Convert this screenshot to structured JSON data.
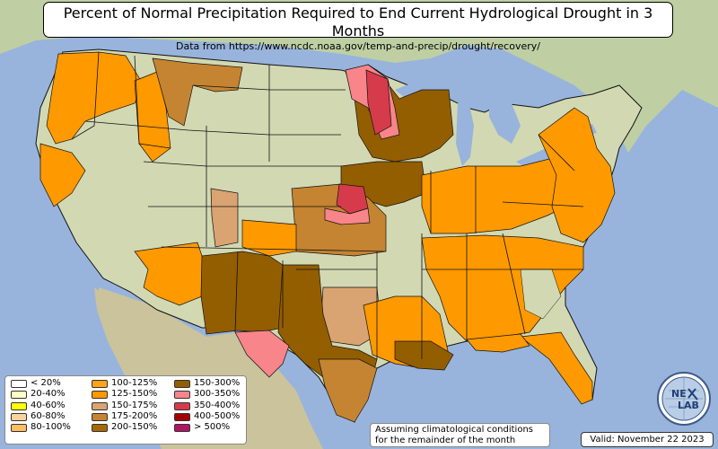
{
  "title": "Percent of Normal Precipitation Required to End Current Hydrological Drought in 3 Months",
  "subtitle": "Data from https://www.ncdc.noaa.gov/temp-and-precip/drought/recovery/",
  "legend": {
    "items": [
      {
        "label": "< 20%",
        "color": "#ffffff"
      },
      {
        "label": "20-40%",
        "color": "#ffffc4"
      },
      {
        "label": "40-60%",
        "color": "#ffff00"
      },
      {
        "label": "60-80%",
        "color": "#fcd39b"
      },
      {
        "label": "80-100%",
        "color": "#fdbe62"
      },
      {
        "label": "100-125%",
        "color": "#ffa31a"
      },
      {
        "label": "125-150%",
        "color": "#ff9900"
      },
      {
        "label": "150-175%",
        "color": "#d9a472"
      },
      {
        "label": "175-200%",
        "color": "#c58431"
      },
      {
        "label": "200-150%",
        "color": "#a86808"
      },
      {
        "label": "150-300%",
        "color": "#935e00"
      },
      {
        "label": "300-350%",
        "color": "#f7858a"
      },
      {
        "label": "350-400%",
        "color": "#d63b4b"
      },
      {
        "label": "400-500%",
        "color": "#a50000"
      },
      {
        "label": "> 500%",
        "color": "#b01565"
      }
    ]
  },
  "note": {
    "line1": "Assuming climatological conditions",
    "line2": "for the remainder of the month"
  },
  "valid": "Valid: November 22 2023",
  "logo": {
    "text1": "NE",
    "text2": "LAB"
  },
  "colors": {
    "ocean": "#98b4dc",
    "land": "#c8d3a6",
    "land_arid": "#d9d2b0",
    "state_border": "#111111"
  },
  "map_regions": [
    {
      "name": "pacific-northwest-drought",
      "color": "#ff9900"
    },
    {
      "name": "idaho-drought",
      "color": "#ff9900"
    },
    {
      "name": "montana-drought",
      "color": "#c58431"
    },
    {
      "name": "central-california-drought",
      "color": "#ff9900"
    },
    {
      "name": "upper-midwest-severe",
      "color": "#935e00"
    },
    {
      "name": "minnesota-extreme",
      "color": "#f7858a"
    },
    {
      "name": "minnesota-core",
      "color": "#d63b4b"
    },
    {
      "name": "iowa-missouri-drought",
      "color": "#935e00"
    },
    {
      "name": "nebraska-kansas-drought",
      "color": "#c58431"
    },
    {
      "name": "nebraska-core",
      "color": "#d63b4b"
    },
    {
      "name": "kansas-pink",
      "color": "#f7858a"
    },
    {
      "name": "southwest-drought",
      "color": "#ff9900"
    },
    {
      "name": "arizona-nm-severe",
      "color": "#935e00"
    },
    {
      "name": "texas-severe",
      "color": "#935e00"
    },
    {
      "name": "west-texas-pink",
      "color": "#f7858a"
    },
    {
      "name": "texas-coast",
      "color": "#c58431"
    },
    {
      "name": "louisiana-mississippi",
      "color": "#ff9900"
    },
    {
      "name": "southeast-drought",
      "color": "#ff9900"
    },
    {
      "name": "ohio-valley-drought",
      "color": "#ff9900"
    },
    {
      "name": "mid-atlantic-drought",
      "color": "#ff9900"
    },
    {
      "name": "florida-drought",
      "color": "#ff9900"
    },
    {
      "name": "oklahoma-tan",
      "color": "#d9a472"
    },
    {
      "name": "nevada-tan",
      "color": "#d9a472"
    }
  ]
}
